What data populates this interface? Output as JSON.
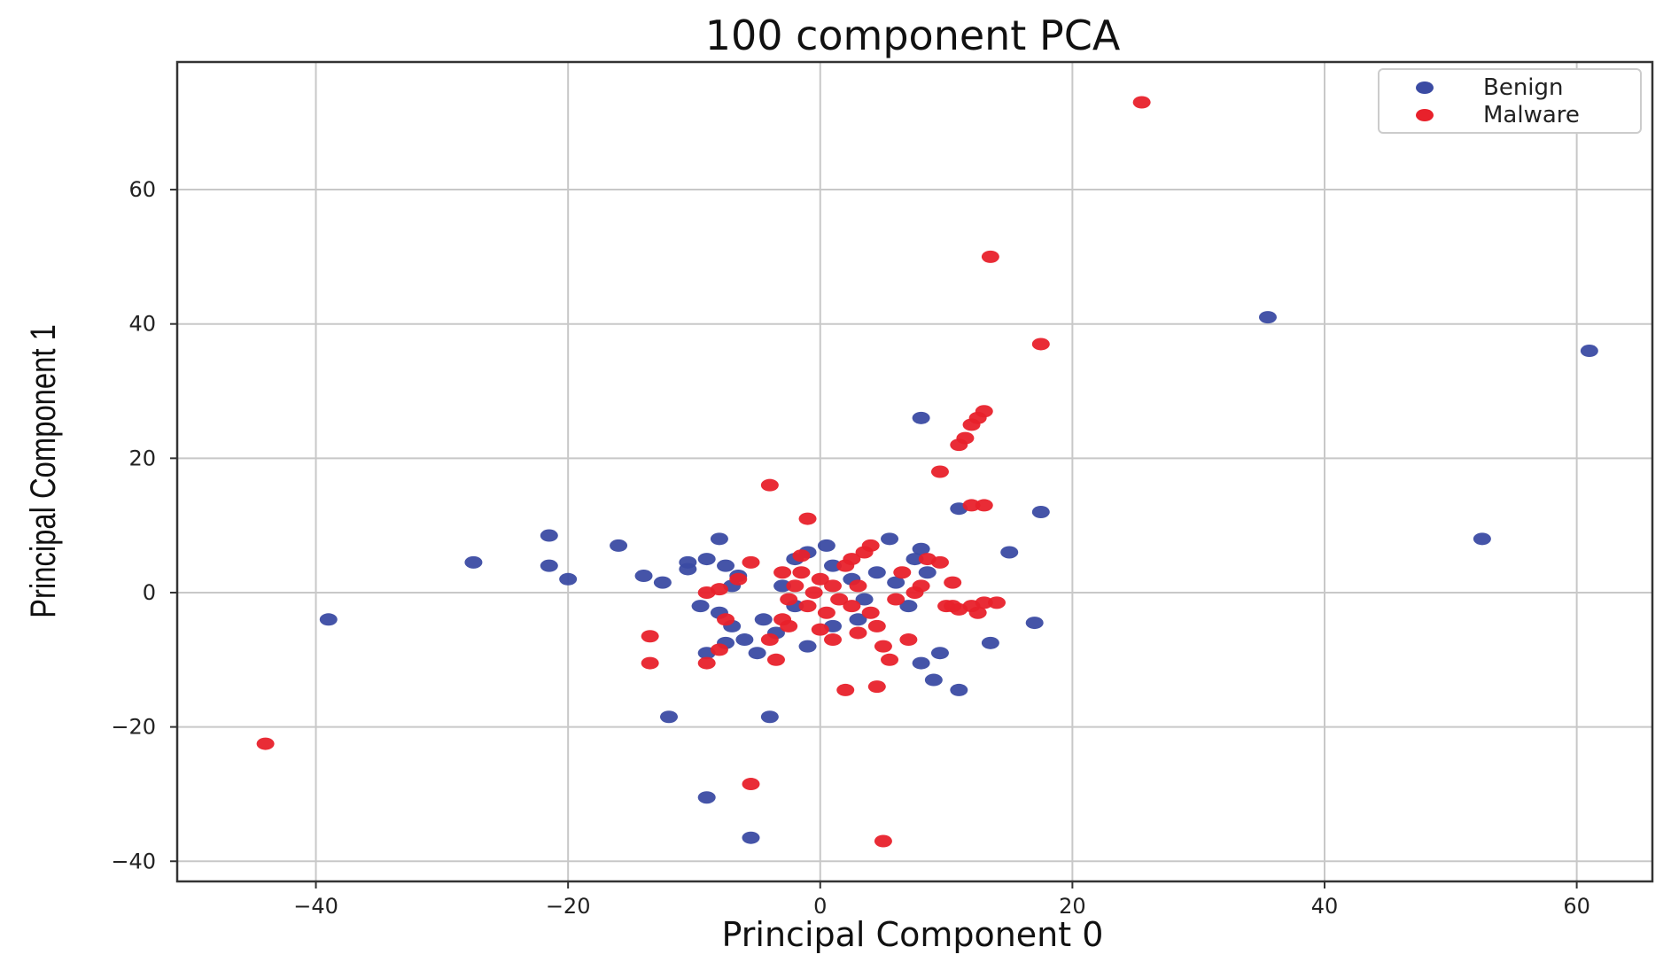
{
  "chart_data": {
    "type": "scatter",
    "title": "100 component PCA",
    "xlabel": "Principal Component 0",
    "ylabel": "Principal Component 1",
    "xlim": [
      -51,
      66
    ],
    "ylim": [
      -43,
      79
    ],
    "xticks": [
      -40,
      -20,
      0,
      20,
      40,
      60
    ],
    "yticks": [
      -40,
      -20,
      0,
      20,
      40,
      60
    ],
    "grid": true,
    "legend": "top-right",
    "series": [
      {
        "name": "Benign",
        "color": "#3b4ba3",
        "points": [
          [
            -39,
            -4
          ],
          [
            -27.5,
            4.5
          ],
          [
            -21.5,
            8.5
          ],
          [
            -21.5,
            4
          ],
          [
            -20,
            2
          ],
          [
            -16,
            7
          ],
          [
            -14,
            2.5
          ],
          [
            -12.5,
            1.5
          ],
          [
            -10.5,
            4.5
          ],
          [
            -10.5,
            3.5
          ],
          [
            -9.5,
            -2
          ],
          [
            -9,
            5
          ],
          [
            -8,
            8
          ],
          [
            -7.5,
            4
          ],
          [
            -7,
            1
          ],
          [
            -6.5,
            2.5
          ],
          [
            -8,
            -3
          ],
          [
            -7,
            -5
          ],
          [
            -6,
            -7
          ],
          [
            -5,
            -9
          ],
          [
            -9,
            -9
          ],
          [
            -7.5,
            -7.5
          ],
          [
            -4.5,
            -4
          ],
          [
            -3.5,
            -6
          ],
          [
            -3,
            1
          ],
          [
            -2,
            5
          ],
          [
            -1,
            6
          ],
          [
            0.5,
            7
          ],
          [
            1,
            4
          ],
          [
            2.5,
            2
          ],
          [
            3.5,
            -1
          ],
          [
            4.5,
            3
          ],
          [
            5.5,
            8
          ],
          [
            6,
            1.5
          ],
          [
            7.5,
            5
          ],
          [
            8,
            6.5
          ],
          [
            8.5,
            3
          ],
          [
            8,
            26
          ],
          [
            11,
            12.5
          ],
          [
            7,
            -2
          ],
          [
            8,
            -10.5
          ],
          [
            9,
            -13
          ],
          [
            9.5,
            -9
          ],
          [
            11,
            -14.5
          ],
          [
            13.5,
            -7.5
          ],
          [
            15,
            6
          ],
          [
            17.5,
            12
          ],
          [
            17,
            -4.5
          ],
          [
            -12,
            -18.5
          ],
          [
            -4,
            -18.5
          ],
          [
            -9,
            -30.5
          ],
          [
            -5.5,
            -36.5
          ],
          [
            -1,
            -8
          ],
          [
            1,
            -5
          ],
          [
            3,
            -4
          ],
          [
            -2,
            -2
          ],
          [
            35.5,
            41
          ],
          [
            52.5,
            8
          ],
          [
            61,
            36
          ]
        ]
      },
      {
        "name": "Malware",
        "color": "#e8212b",
        "points": [
          [
            -44,
            -22.5
          ],
          [
            -13.5,
            -6.5
          ],
          [
            -13.5,
            -10.5
          ],
          [
            -9,
            -10.5
          ],
          [
            -8,
            -8.5
          ],
          [
            -7.5,
            -4
          ],
          [
            -9,
            0
          ],
          [
            -8,
            0.5
          ],
          [
            -6.5,
            2
          ],
          [
            -5.5,
            4.5
          ],
          [
            -4,
            16
          ],
          [
            -3.5,
            -10
          ],
          [
            -4,
            -7
          ],
          [
            -3,
            -4
          ],
          [
            -2.5,
            -1
          ],
          [
            -2,
            1
          ],
          [
            -1.5,
            3
          ],
          [
            -1,
            -2
          ],
          [
            -0.5,
            0
          ],
          [
            0,
            2
          ],
          [
            0.5,
            -3
          ],
          [
            1,
            1
          ],
          [
            1.5,
            -1
          ],
          [
            2,
            4
          ],
          [
            -1,
            11
          ],
          [
            2.5,
            -2
          ],
          [
            3,
            1
          ],
          [
            3.5,
            6
          ],
          [
            4,
            7
          ],
          [
            4.5,
            -5
          ],
          [
            5,
            -8
          ],
          [
            5.5,
            -10
          ],
          [
            6,
            -1
          ],
          [
            6.5,
            3
          ],
          [
            7,
            -7
          ],
          [
            7.5,
            0
          ],
          [
            8,
            1
          ],
          [
            8.5,
            5
          ],
          [
            9.5,
            4.5
          ],
          [
            10,
            -2
          ],
          [
            10.5,
            -2
          ],
          [
            11,
            -2.5
          ],
          [
            12,
            -2
          ],
          [
            13,
            -1.5
          ],
          [
            14,
            -1.5
          ],
          [
            10.5,
            1.5
          ],
          [
            12.5,
            -3
          ],
          [
            9.5,
            18
          ],
          [
            11,
            22
          ],
          [
            11.5,
            23
          ],
          [
            12,
            25
          ],
          [
            12.5,
            26
          ],
          [
            13,
            27
          ],
          [
            12,
            13
          ],
          [
            13,
            13
          ],
          [
            13.5,
            50
          ],
          [
            17.5,
            37
          ],
          [
            25.5,
            73
          ],
          [
            2,
            -14.5
          ],
          [
            4.5,
            -14
          ],
          [
            5,
            -37
          ],
          [
            -5.5,
            -28.5
          ],
          [
            -2.5,
            -5
          ],
          [
            0,
            -5.5
          ],
          [
            1,
            -7
          ],
          [
            -1.5,
            5.5
          ],
          [
            2.5,
            5
          ],
          [
            -3,
            3
          ],
          [
            4,
            -3
          ],
          [
            3,
            -6
          ]
        ]
      }
    ]
  }
}
